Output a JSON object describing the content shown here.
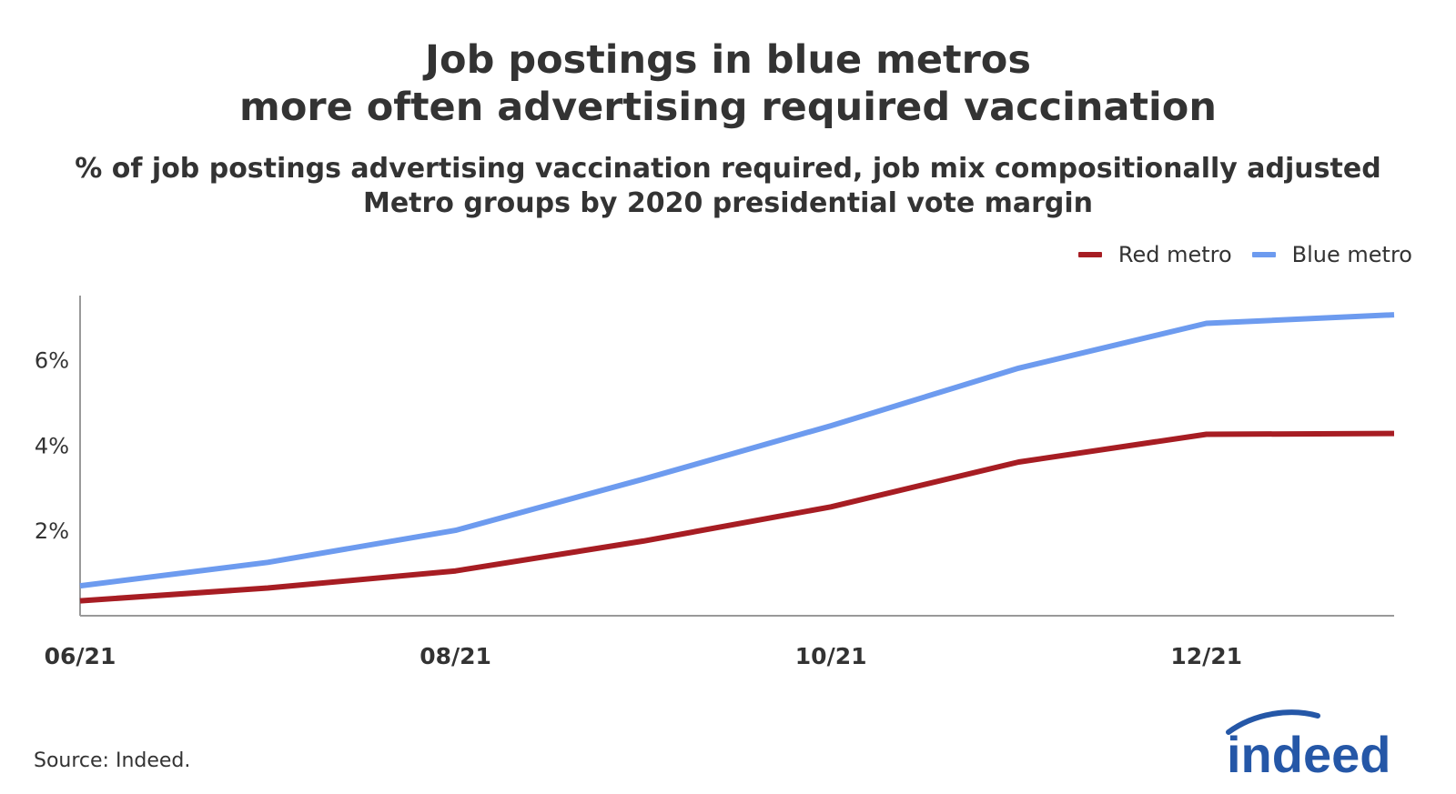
{
  "title": {
    "line1": "Job postings in blue metros",
    "line2": "more often advertising required vaccination"
  },
  "subtitle": {
    "line1": "% of job postings advertising vaccination required, job mix compositionally adjusted",
    "line2": "Metro groups by 2020 presidential vote margin"
  },
  "source": "Source: Indeed.",
  "logo": {
    "text": "indeed",
    "color": "#2557a7"
  },
  "colors": {
    "red_metro": "#a71d23",
    "blue_metro": "#6d9bef",
    "axis": "#999999",
    "text": "#333333"
  },
  "chart_data": {
    "type": "line",
    "x_tick_labels": [
      "06/21",
      "08/21",
      "10/21",
      "12/21"
    ],
    "x": [
      "2021-06",
      "2021-07",
      "2021-08",
      "2021-09",
      "2021-10",
      "2021-11",
      "2021-12",
      "2022-01"
    ],
    "xlim": [
      "2021-06",
      "2022-01"
    ],
    "y_tick_labels": [
      "2%",
      "4%",
      "6%"
    ],
    "y_ticks": [
      2,
      4,
      6
    ],
    "ylim": [
      0.0,
      7.5
    ],
    "grid": false,
    "legend_position": "top-right",
    "series": [
      {
        "name": "Red metro",
        "color": "#a71d23",
        "values": [
          0.35,
          0.65,
          1.05,
          1.75,
          2.55,
          3.6,
          4.25,
          4.27
        ]
      },
      {
        "name": "Blue metro",
        "color": "#6d9bef",
        "values": [
          0.7,
          1.25,
          2.0,
          3.2,
          4.45,
          5.8,
          6.85,
          7.05
        ]
      }
    ]
  }
}
